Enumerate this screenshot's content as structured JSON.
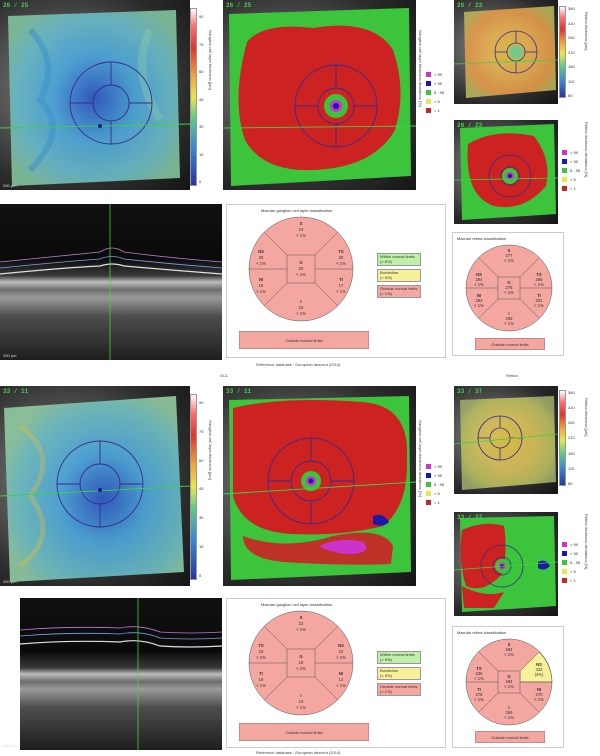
{
  "top": {
    "left_map_tag": "26 / 25",
    "deviation_map_tag": "26 / 25",
    "retina_map_tag": "26 / 23",
    "retina_dev_tag": "26 / 23",
    "thickness_bar": {
      "title": "Ganglion cell layer thickness [µm]",
      "ticks": [
        "90",
        "75",
        "60",
        "45",
        "30",
        "15",
        "0"
      ]
    },
    "deviation_title": "Ganglion cell layer thickness deviations [%]",
    "retina_bar": {
      "title": "Retina thickness [µm]",
      "ticks": [
        "360",
        "310",
        "260",
        "210",
        "160",
        "110",
        "60"
      ]
    },
    "retina_dev_title": "Retina thickness deviations [%]",
    "legend": [
      {
        "label": "> 99",
        "color": "#cc33cc"
      },
      {
        "label": "> 95",
        "color": "#1a1aa6"
      },
      {
        "label": "5 - 95",
        "color": "#3cc43c"
      },
      {
        "label": "< 5",
        "color": "#e8e84a"
      },
      {
        "label": "< 1",
        "color": "#cc2222"
      }
    ],
    "gcl_card": {
      "title": "Macular ganglion cell layer classification",
      "sectors": [
        {
          "id": "S",
          "value": "23",
          "pct": "< 1%"
        },
        {
          "id": "NS",
          "value": "26",
          "pct": "< 1%"
        },
        {
          "id": "TS",
          "value": "20",
          "pct": "< 1%"
        },
        {
          "id": "G",
          "value": "20",
          "pct": "< 1%"
        },
        {
          "id": "NI",
          "value": "18",
          "pct": "< 1%"
        },
        {
          "id": "TI",
          "value": "17",
          "pct": "< 1%"
        },
        {
          "id": "I",
          "value": "15",
          "pct": "< 1%"
        }
      ],
      "status": [
        "Within normal limits\n(> 5%)",
        "Borderline\n(< 5%)",
        "Outside normal limits\n(< 1%)"
      ],
      "verdict": "Outside normal limits"
    },
    "retina_card": {
      "title": "Macular retina classification",
      "sectors": [
        {
          "id": "S",
          "value": "277",
          "pct": "< 1%"
        },
        {
          "id": "NS",
          "value": "294",
          "pct": "< 1%"
        },
        {
          "id": "TS",
          "value": "266",
          "pct": "< 1%"
        },
        {
          "id": "G",
          "value": "278",
          "pct": "< 1%"
        },
        {
          "id": "NI",
          "value": "282",
          "pct": "< 1%"
        },
        {
          "id": "TI",
          "value": "281",
          "pct": "< 1%"
        },
        {
          "id": "I",
          "value": "266",
          "pct": "< 1%"
        }
      ],
      "verdict": "Outside normal limits"
    },
    "reference": "Reference database : European descent (2014)",
    "scale": "200 µm"
  },
  "divider_labels": {
    "gcl": "GCL",
    "retina": "Retina"
  },
  "bottom": {
    "left_map_tag": "33 / 11",
    "deviation_map_tag": "33 / 11",
    "retina_map_tag": "33 / 37",
    "retina_dev_tag": "33 / 37",
    "gcl_card": {
      "title": "Macular ganglion cell layer classification",
      "sectors": [
        {
          "id": "S",
          "value": "22",
          "pct": "< 1%"
        },
        {
          "id": "TS",
          "value": "16",
          "pct": "< 1%"
        },
        {
          "id": "NS",
          "value": "22",
          "pct": "< 1%"
        },
        {
          "id": "G",
          "value": "18",
          "pct": "< 1%"
        },
        {
          "id": "TI",
          "value": "18",
          "pct": "< 1%"
        },
        {
          "id": "NI",
          "value": "12",
          "pct": "< 1%"
        },
        {
          "id": "I",
          "value": "10",
          "pct": "< 1%"
        }
      ],
      "status": [
        "Within normal limits\n(> 5%)",
        "Borderline\n(< 5%)",
        "Outside normal limits\n(< 1%)"
      ],
      "verdict": "Outside normal limits"
    },
    "retina_card": {
      "title": "Macular retina classification",
      "sectors": [
        {
          "id": "S",
          "value": "264",
          "pct": "< 1%"
        },
        {
          "id": "TS",
          "value": "235",
          "pct": "< 1%"
        },
        {
          "id": "NS",
          "value": "333",
          "pct": "(2%)"
        },
        {
          "id": "G",
          "value": "284",
          "pct": "< 1%"
        },
        {
          "id": "TI",
          "value": "278",
          "pct": "< 1%"
        },
        {
          "id": "NI",
          "value": "270",
          "pct": "< 1%"
        },
        {
          "id": "I",
          "value": "266",
          "pct": "< 1%"
        }
      ],
      "verdict": "Outside normal limits"
    },
    "reference": "Reference database : European descent (2014)",
    "scale": "200 µm"
  },
  "colors": {
    "outside": "#f4a6a0",
    "borderline": "#f7f29a",
    "within": "#bff0a8",
    "dev_red": "#cc2222",
    "dev_green": "#3cc43c",
    "thickness_blue": "#4aa3d8"
  }
}
